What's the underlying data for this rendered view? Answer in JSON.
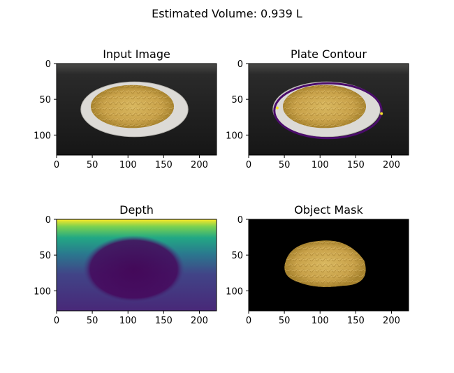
{
  "figure": {
    "suptitle": "Estimated Volume: 0.939 L"
  },
  "colors": {
    "frame": "#000000",
    "background": "#ffffff",
    "plate_dark_bg": "#1c1c1c",
    "plate_white": "#d9d9d6",
    "food": "#c9a24a",
    "food_dark": "#9c7a2a",
    "contour": "#4b0c6b",
    "marker": "#f5e02c",
    "viridis_low": "#440154",
    "viridis_mid": "#21918c",
    "viridis_high": "#fde725"
  },
  "chart_data": [
    {
      "type": "image",
      "title": "Input Image",
      "xlim": [
        0,
        224
      ],
      "ylim": [
        128,
        0
      ],
      "xticks": [
        0,
        50,
        100,
        150,
        200
      ],
      "yticks": [
        0,
        50,
        100
      ]
    },
    {
      "type": "image",
      "title": "Plate Contour",
      "xlim": [
        0,
        224
      ],
      "ylim": [
        128,
        0
      ],
      "xticks": [
        0,
        50,
        100,
        150,
        200
      ],
      "yticks": [
        0,
        50,
        100
      ]
    },
    {
      "type": "heatmap",
      "title": "Depth",
      "colormap": "viridis",
      "xlim": [
        0,
        224
      ],
      "ylim": [
        128,
        0
      ],
      "xticks": [
        0,
        50,
        100,
        150,
        200
      ],
      "yticks": [
        0,
        50,
        100
      ]
    },
    {
      "type": "image",
      "title": "Object Mask",
      "xlim": [
        0,
        224
      ],
      "ylim": [
        128,
        0
      ],
      "xticks": [
        0,
        50,
        100,
        150,
        200
      ],
      "yticks": [
        0,
        50,
        100
      ]
    }
  ]
}
